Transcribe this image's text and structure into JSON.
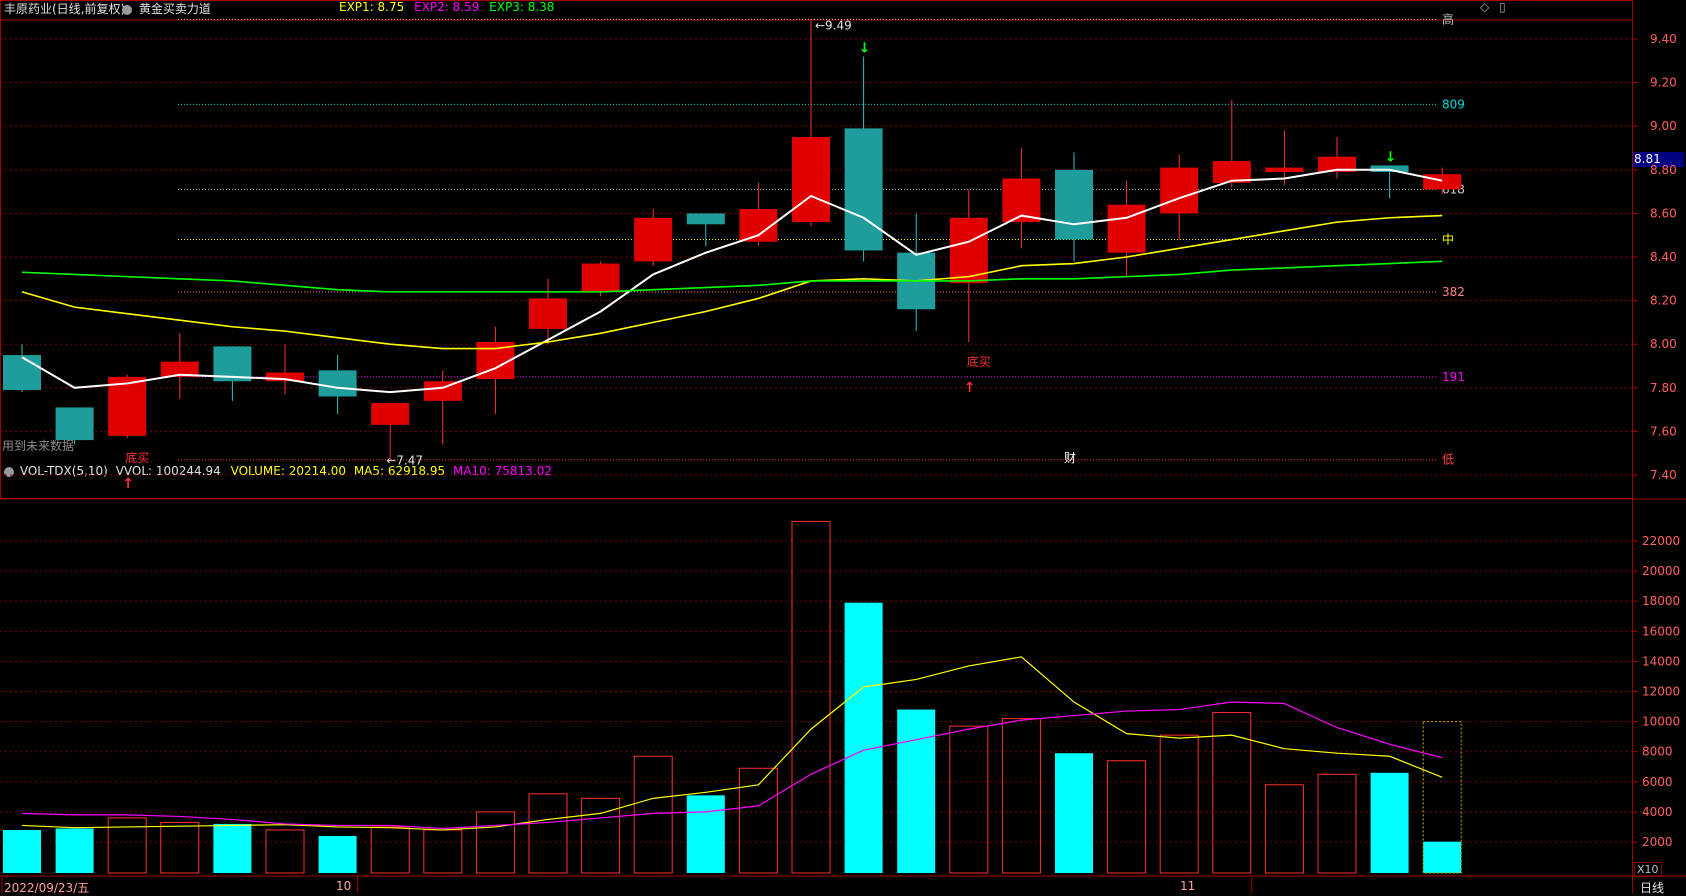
{
  "window": {
    "title": "丰原药业(日线,前复权)",
    "indicator": "黄金买卖力道"
  },
  "exp": [
    {
      "label": "EXP1: 8.75",
      "color": "#ffff00"
    },
    {
      "label": "EXP2: 8.59",
      "color": "#ff00ff"
    },
    {
      "label": "EXP3: 8.38",
      "color": "#00ff00"
    }
  ],
  "vol_header": {
    "name": "VOL-TDX(5,10)",
    "vvol": "VVOL: 100244.94",
    "volume": "VOLUME: 20214.00",
    "ma5": "MA5: 62918.95",
    "ma10": "MA10: 75813.02"
  },
  "notes": {
    "future_data": "用到未来数据",
    "fin_mark": "财",
    "buy_label": "底买",
    "high_mark": "9.49",
    "low_mark": "7.47",
    "price_tag": "8.81",
    "unit": "X10",
    "period": "日线"
  },
  "x_labels": [
    "2022/09/23/五",
    "10",
    "11"
  ],
  "level_lines": [
    {
      "label": "高",
      "value": 9.49,
      "color": "#c8c8c8"
    },
    {
      "label": "809",
      "value": 9.1,
      "color": "#00d8d8"
    },
    {
      "label": "618",
      "value": 8.71,
      "color": "#c8c8c8"
    },
    {
      "label": "中",
      "value": 8.48,
      "color": "#ffff00"
    },
    {
      "label": "382",
      "value": 8.24,
      "color": "#ff8080"
    },
    {
      "label": "191",
      "value": 7.85,
      "color": "#ff00ff"
    },
    {
      "label": "低",
      "value": 7.47,
      "color": "#ff4040"
    }
  ],
  "chart_data": [
    {
      "type": "candlestick",
      "title": "丰原药业(日线,前复权)",
      "ylim": [
        7.3,
        9.55
      ],
      "yticks": [
        7.4,
        7.6,
        7.8,
        8.0,
        8.2,
        8.4,
        8.6,
        8.8,
        9.0,
        9.2,
        9.4
      ],
      "candles": [
        {
          "o": 7.95,
          "c": 7.79,
          "h": 8.0,
          "l": 7.78
        },
        {
          "o": 7.71,
          "c": 7.56,
          "h": 7.71,
          "l": 7.54
        },
        {
          "o": 7.58,
          "c": 7.85,
          "h": 7.86,
          "l": 7.57
        },
        {
          "o": 7.85,
          "c": 7.92,
          "h": 8.05,
          "l": 7.75
        },
        {
          "o": 7.99,
          "c": 7.83,
          "h": 7.99,
          "l": 7.74
        },
        {
          "o": 7.83,
          "c": 7.87,
          "h": 8.0,
          "l": 7.77
        },
        {
          "o": 7.88,
          "c": 7.76,
          "h": 7.95,
          "l": 7.68
        },
        {
          "o": 7.63,
          "c": 7.73,
          "h": 7.73,
          "l": 7.47
        },
        {
          "o": 7.74,
          "c": 7.83,
          "h": 7.88,
          "l": 7.54
        },
        {
          "o": 7.84,
          "c": 8.01,
          "h": 8.08,
          "l": 7.68
        },
        {
          "o": 8.07,
          "c": 8.21,
          "h": 8.3,
          "l": 8.0
        },
        {
          "o": 8.24,
          "c": 8.37,
          "h": 8.38,
          "l": 8.22
        },
        {
          "o": 8.38,
          "c": 8.58,
          "h": 8.62,
          "l": 8.36
        },
        {
          "o": 8.6,
          "c": 8.55,
          "h": 8.6,
          "l": 8.45
        },
        {
          "o": 8.47,
          "c": 8.62,
          "h": 8.74,
          "l": 8.45
        },
        {
          "o": 8.56,
          "c": 8.95,
          "h": 9.49,
          "l": 8.54
        },
        {
          "o": 8.99,
          "c": 8.43,
          "h": 9.32,
          "l": 8.38
        },
        {
          "o": 8.42,
          "c": 8.16,
          "h": 8.6,
          "l": 8.06
        },
        {
          "o": 8.28,
          "c": 8.58,
          "h": 8.71,
          "l": 8.01
        },
        {
          "o": 8.56,
          "c": 8.76,
          "h": 8.9,
          "l": 8.44
        },
        {
          "o": 8.8,
          "c": 8.48,
          "h": 8.88,
          "l": 8.38
        },
        {
          "o": 8.42,
          "c": 8.64,
          "h": 8.75,
          "l": 8.31
        },
        {
          "o": 8.6,
          "c": 8.81,
          "h": 8.87,
          "l": 8.48
        },
        {
          "o": 8.74,
          "c": 8.84,
          "h": 9.12,
          "l": 8.72
        },
        {
          "o": 8.79,
          "c": 8.81,
          "h": 8.98,
          "l": 8.73
        },
        {
          "o": 8.79,
          "c": 8.86,
          "h": 8.95,
          "l": 8.76
        },
        {
          "o": 8.82,
          "c": 8.79,
          "h": 8.82,
          "l": 8.67
        },
        {
          "o": 8.71,
          "c": 8.78,
          "h": 8.81,
          "l": 8.69
        }
      ],
      "series": [
        {
          "name": "EXP1",
          "color": "#ffffff",
          "values": [
            7.94,
            7.8,
            7.82,
            7.86,
            7.85,
            7.84,
            7.8,
            7.78,
            7.8,
            7.89,
            8.02,
            8.15,
            8.32,
            8.42,
            8.5,
            8.68,
            8.58,
            8.41,
            8.47,
            8.59,
            8.55,
            8.58,
            8.67,
            8.75,
            8.76,
            8.8,
            8.8,
            8.75
          ]
        },
        {
          "name": "EXP2",
          "color": "#ffff00",
          "values": [
            8.24,
            8.17,
            8.14,
            8.11,
            8.08,
            8.06,
            8.03,
            8.0,
            7.98,
            7.98,
            8.01,
            8.05,
            8.1,
            8.15,
            8.21,
            8.29,
            8.3,
            8.29,
            8.31,
            8.36,
            8.37,
            8.4,
            8.44,
            8.48,
            8.52,
            8.56,
            8.58,
            8.59
          ]
        },
        {
          "name": "EXP3",
          "color": "#00ff00",
          "values": [
            8.33,
            8.32,
            8.31,
            8.3,
            8.29,
            8.27,
            8.25,
            8.24,
            8.24,
            8.24,
            8.24,
            8.24,
            8.25,
            8.26,
            8.27,
            8.29,
            8.29,
            8.29,
            8.29,
            8.3,
            8.3,
            8.31,
            8.32,
            8.34,
            8.35,
            8.36,
            8.37,
            8.38
          ]
        }
      ],
      "signals": [
        {
          "index": 2,
          "kind": "buy",
          "label": "底买"
        },
        {
          "index": 18,
          "kind": "buy",
          "label": "底买"
        },
        {
          "index": 16,
          "kind": "sell"
        },
        {
          "index": 26,
          "kind": "sell"
        }
      ]
    },
    {
      "type": "bar",
      "title": "VOL-TDX(5,10)",
      "ylim": [
        0,
        23500
      ],
      "yticks": [
        2000,
        4000,
        6000,
        8000,
        10000,
        12000,
        14000,
        16000,
        18000,
        20000,
        22000
      ],
      "values": [
        2800,
        2900,
        3600,
        3300,
        3200,
        2800,
        2400,
        3000,
        2800,
        4000,
        5200,
        4900,
        7700,
        5100,
        6900,
        23300,
        17900,
        10800,
        9700,
        10200,
        7900,
        7400,
        9100,
        10600,
        5800,
        6500,
        6600,
        2021
      ],
      "up": [
        false,
        false,
        true,
        true,
        false,
        true,
        false,
        true,
        true,
        true,
        true,
        true,
        true,
        false,
        true,
        true,
        false,
        false,
        true,
        true,
        false,
        true,
        true,
        true,
        true,
        true,
        false,
        false
      ],
      "series": [
        {
          "name": "MA5",
          "color": "#ffff00",
          "values": [
            3100,
            2950,
            3000,
            3050,
            3100,
            3150,
            3000,
            2950,
            2800,
            3000,
            3500,
            3900,
            4900,
            5300,
            5800,
            9500,
            12300,
            12800,
            13700,
            14300,
            11300,
            9200,
            8900,
            9100,
            8200,
            7900,
            7700,
            6300
          ]
        },
        {
          "name": "MA10",
          "color": "#ff00ff",
          "values": [
            3900,
            3800,
            3800,
            3700,
            3500,
            3200,
            3100,
            3100,
            2900,
            3100,
            3300,
            3600,
            3900,
            4000,
            4400,
            6500,
            8100,
            8800,
            9500,
            10100,
            10400,
            10700,
            10800,
            11300,
            11200,
            9600,
            8500,
            7600
          ]
        }
      ]
    }
  ]
}
